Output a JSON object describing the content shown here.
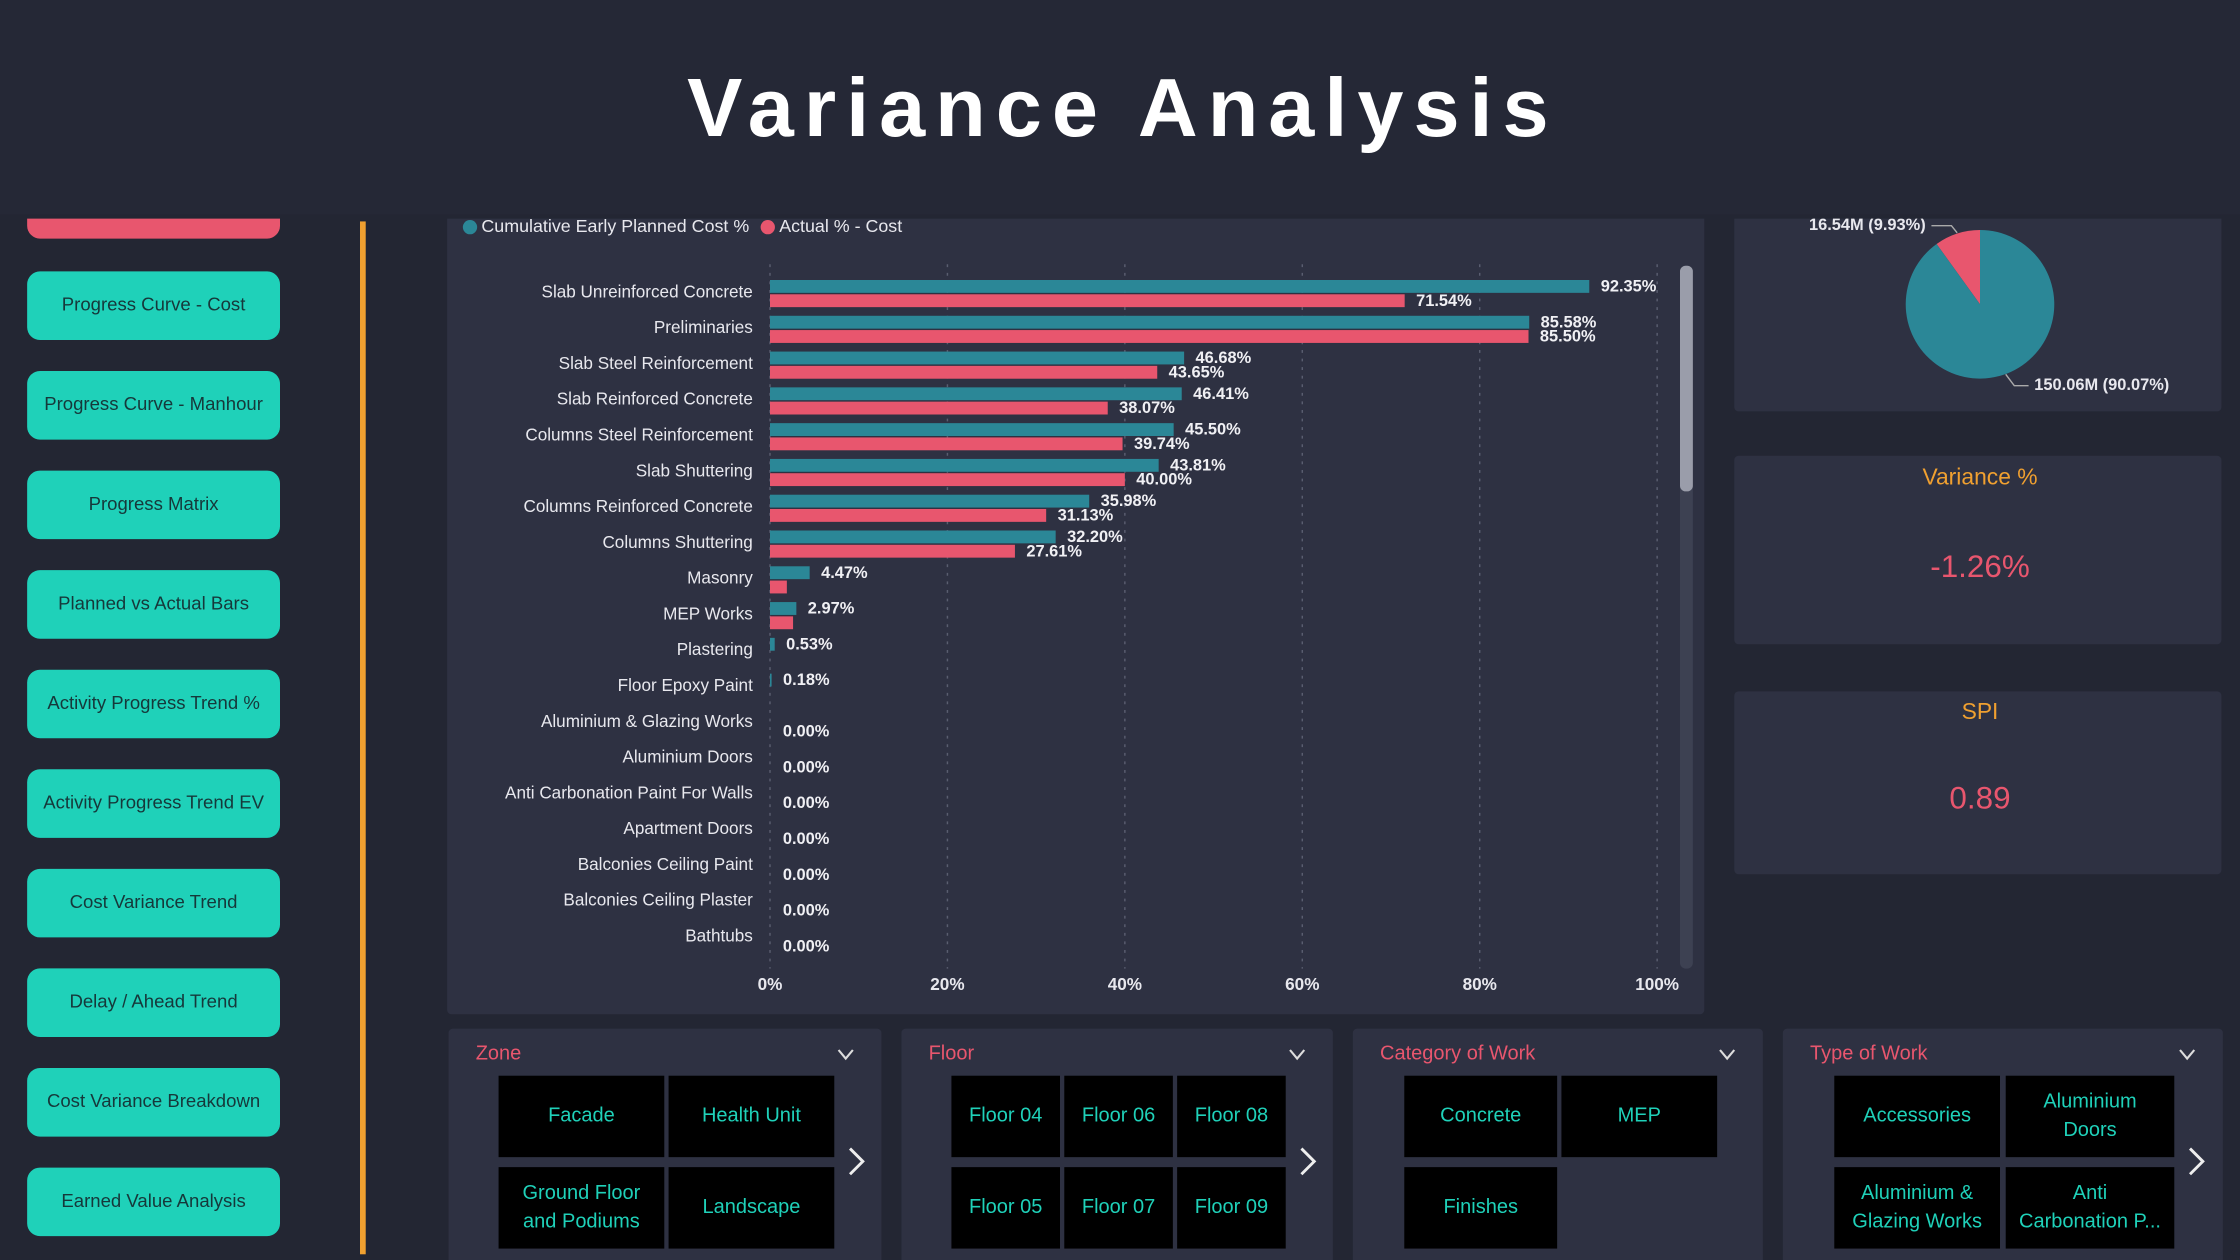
{
  "title": "Variance Analysis",
  "nav": [
    "Progress Curve - Cost",
    "Progress Curve - Manhour",
    "Progress Matrix",
    "Planned vs Actual Bars",
    "Activity Progress Trend %",
    "Activity Progress Trend EV",
    "Cost Variance Trend",
    "Delay / Ahead Trend",
    "Cost Variance Breakdown",
    "Earned Value Analysis"
  ],
  "chart_data": [
    {
      "type": "bar",
      "orientation": "horizontal",
      "categories": [
        "Slab Unreinforced Concrete",
        "Preliminaries",
        "Slab Steel Reinforcement",
        "Slab Reinforced Concrete",
        "Columns Steel Reinforcement",
        "Slab Shuttering",
        "Columns Reinforced Concrete",
        "Columns Shuttering",
        "Masonry",
        "MEP Works",
        "Plastering",
        "Floor Epoxy Paint",
        "Aluminium & Glazing Works",
        "Aluminium Doors",
        "Anti Carbonation Paint For Walls",
        "Apartment Doors",
        "Balconies Ceiling Paint",
        "Balconies Ceiling Plaster",
        "Bathtubs"
      ],
      "series": [
        {
          "name": "Cumulative Early Planned Cost %",
          "color": "#2b8797",
          "values": [
            92.35,
            85.58,
            46.68,
            46.41,
            45.5,
            43.81,
            35.98,
            32.2,
            4.47,
            2.97,
            0.53,
            0.18,
            0,
            0,
            0,
            0,
            0,
            0,
            0
          ],
          "value_labels": [
            "92.35%",
            "85.58%",
            "46.68%",
            "46.41%",
            "45.50%",
            "43.81%",
            "35.98%",
            "32.20%",
            "4.47%",
            "2.97%",
            "0.53%",
            "0.18%",
            "0.00%",
            "0.00%",
            "0.00%",
            "0.00%",
            "0.00%",
            "0.00%",
            "0.00%"
          ]
        },
        {
          "name": "Actual % - Cost",
          "color": "#e8566e",
          "values": [
            71.54,
            85.5,
            43.65,
            38.07,
            39.74,
            40.0,
            31.13,
            27.61,
            1.9,
            2.6,
            0,
            0,
            0,
            0,
            0,
            0,
            0,
            0,
            0
          ],
          "value_labels": [
            "71.54%",
            "85.50%",
            "43.65%",
            "38.07%",
            "39.74%",
            "40.00%",
            "31.13%",
            "27.61%",
            null,
            null,
            null,
            null,
            null,
            null,
            null,
            null,
            null,
            null,
            null
          ]
        }
      ],
      "xlim": [
        0,
        100
      ],
      "xticks": [
        {
          "value": 0,
          "label": "0%"
        },
        {
          "value": 20,
          "label": "20%"
        },
        {
          "value": 40,
          "label": "40%"
        },
        {
          "value": 60,
          "label": "60%"
        },
        {
          "value": 80,
          "label": "80%"
        },
        {
          "value": 100,
          "label": "100%"
        }
      ],
      "grid": true
    },
    {
      "type": "pie",
      "values": [
        9.93,
        90.07
      ],
      "value_labels": [
        "16.54M (9.93%)",
        "150.06M (90.07%)"
      ],
      "colors": [
        "#e8566e",
        "#2b8797"
      ]
    }
  ],
  "cards": [
    {
      "title": "Variance %",
      "value": "-1.26%"
    },
    {
      "title": "SPI",
      "value": "0.89"
    }
  ],
  "slicers": [
    {
      "title": "Zone",
      "items": [
        [
          "Facade"
        ],
        [
          "Health Unit"
        ],
        [
          "Ground Floor",
          "and Podiums"
        ],
        [
          "Landscape"
        ]
      ]
    },
    {
      "title": "Floor",
      "items": [
        [
          "Floor 04"
        ],
        [
          "Floor 06"
        ],
        [
          "Floor 08"
        ],
        [
          "Floor 05"
        ],
        [
          "Floor 07"
        ],
        [
          "Floor 09"
        ]
      ]
    },
    {
      "title": "Category of Work",
      "items": [
        [
          "Concrete"
        ],
        [
          "MEP"
        ],
        [
          "Finishes"
        ]
      ]
    },
    {
      "title": "Type of Work",
      "items": [
        [
          "Accessories"
        ],
        [
          "Aluminium",
          "Doors"
        ],
        [
          "Aluminium &",
          "Glazing Works"
        ],
        [
          "Anti",
          "Carbonation P..."
        ]
      ]
    }
  ]
}
